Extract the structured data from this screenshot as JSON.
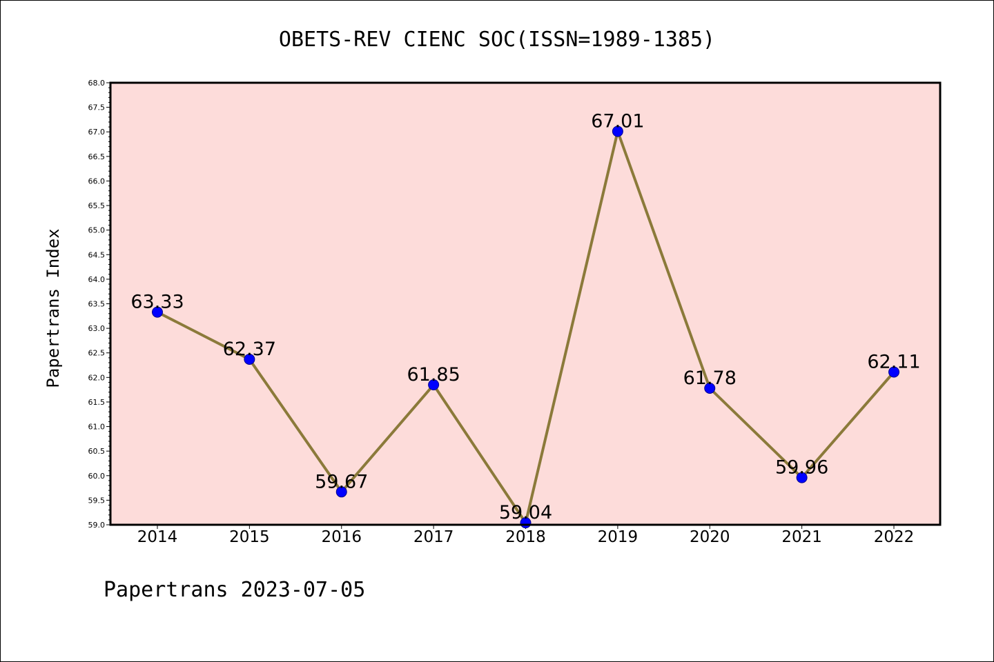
{
  "footer": {
    "text": "Papertrans 2023-07-05"
  },
  "chart_data": {
    "type": "line",
    "title": "OBETS-REV CIENC SOC(ISSN=1989-1385)",
    "xlabel": "",
    "ylabel": "Papertrans Index",
    "categories": [
      "2014",
      "2015",
      "2016",
      "2017",
      "2018",
      "2019",
      "2020",
      "2021",
      "2022"
    ],
    "series": [
      {
        "values": [
          63.33,
          62.37,
          59.67,
          61.85,
          59.04,
          67.01,
          61.78,
          59.96,
          62.11
        ],
        "data_labels": [
          "63.33",
          "62.37",
          "59.67",
          "61.85",
          "59.04",
          "67.01",
          "61.78",
          "59.96",
          "62.11"
        ]
      }
    ],
    "ylim": [
      59.0,
      68.0
    ],
    "yticks": [
      "59.0",
      "59.5",
      "60.0",
      "60.5",
      "61.0",
      "61.5",
      "62.0",
      "62.5",
      "63.0",
      "63.5",
      "64.0",
      "64.5",
      "65.0",
      "65.5",
      "66.0",
      "66.5",
      "67.0",
      "67.5",
      "68.0"
    ],
    "grid": false,
    "legend": "none",
    "colors": {
      "plot_background": "#fddcda",
      "line": "#8b7a3a",
      "marker": "#0000ff",
      "marker_edge": "#00008b",
      "axes": "#000000"
    }
  }
}
